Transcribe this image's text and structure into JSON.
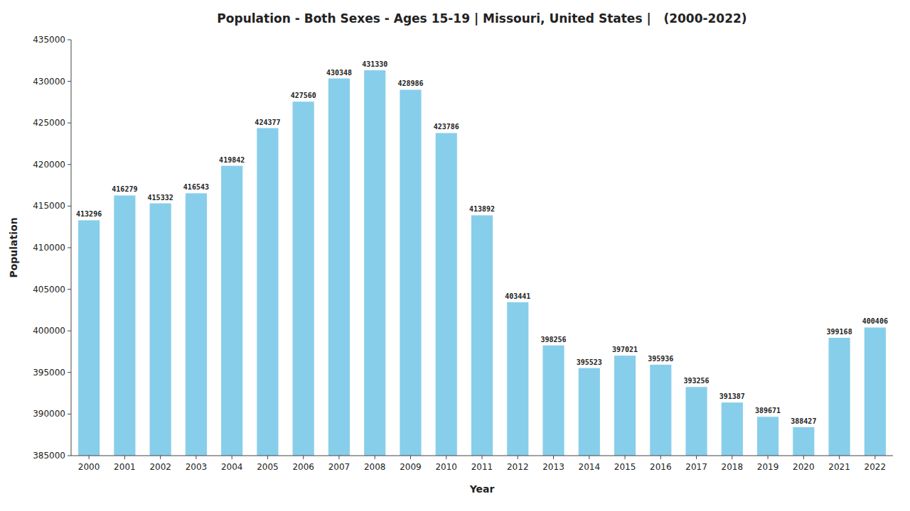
{
  "chart_data": {
    "type": "bar",
    "title": "Population - Both Sexes - Ages 15-19 | Missouri, United States |   (2000-2022)",
    "x_label": "Year",
    "y_label": "Population",
    "categories": [
      "2000",
      "2001",
      "2002",
      "2003",
      "2004",
      "2005",
      "2006",
      "2007",
      "2008",
      "2009",
      "2010",
      "2011",
      "2012",
      "2013",
      "2014",
      "2015",
      "2016",
      "2017",
      "2018",
      "2019",
      "2020",
      "2021",
      "2022"
    ],
    "values": [
      413296,
      416279,
      415332,
      416543,
      419842,
      424377,
      427560,
      430348,
      431330,
      428986,
      423786,
      413892,
      403441,
      398256,
      395523,
      397021,
      395936,
      393256,
      391387,
      389671,
      388427,
      399168,
      400406
    ],
    "color": "#87CEEB",
    "ylim": [
      385000,
      435000
    ],
    "yticks": [
      385000,
      390000,
      395000,
      400000,
      405000,
      410000,
      415000,
      420000,
      425000,
      430000,
      435000
    ],
    "data_labels": true,
    "grid": false
  }
}
